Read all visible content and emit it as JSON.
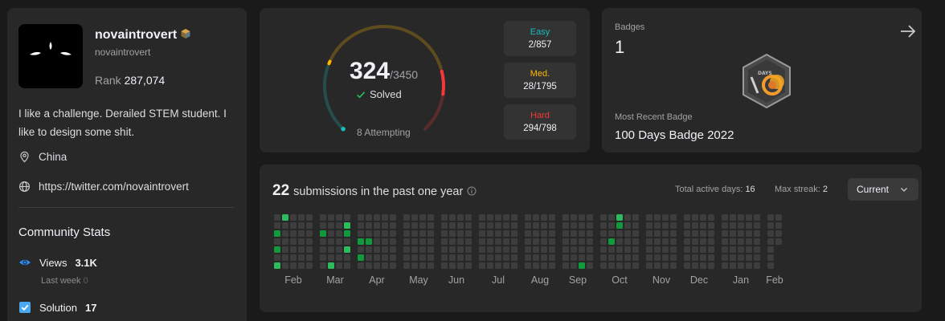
{
  "profile": {
    "username": "novaintrovert",
    "handle": "novaintrovert",
    "rank_label": "Rank",
    "rank_value": "287,074",
    "bio": "I like a challenge. Derailed STEM student. I like to design some shit.",
    "location": "China",
    "website": "https://twitter.com/novaintrovert",
    "community_title": "Community Stats",
    "views_label": "Views",
    "views_value": "3.1K",
    "views_sub": "Last week",
    "views_sub_value": "0",
    "solution_label": "Solution",
    "solution_value": "17"
  },
  "solved": {
    "count": "324",
    "total": "/3450",
    "label": "Solved",
    "attempting": "8 Attempting",
    "progress": {
      "solved": 324,
      "total": 3450,
      "easy": 2,
      "medium": 28,
      "hard": 294
    },
    "easy_label": "Easy",
    "easy_value": "2/857",
    "med_label": "Med.",
    "med_value": "28/1795",
    "hard_label": "Hard",
    "hard_value": "294/798",
    "colors": {
      "easy": "#1cbaba",
      "medium": "#ffb700",
      "hard": "#f63737"
    }
  },
  "badges": {
    "title": "Badges",
    "count": "1",
    "recent_label": "Most Recent Badge",
    "recent_name": "100 Days Badge 2022",
    "badge_text": "DAYS"
  },
  "submissions": {
    "count": "22",
    "title": "submissions in the past one year",
    "active_label": "Total active days:",
    "active_value": "16",
    "streak_label": "Max streak:",
    "streak_value": "2",
    "select_value": "Current",
    "months": [
      "Feb",
      "Mar",
      "Apr",
      "May",
      "Jun",
      "Jul",
      "Aug",
      "Sep",
      "Oct",
      "Nov",
      "Dec",
      "Jan",
      "Feb"
    ],
    "active_cells": [
      {
        "week": 0,
        "day": 2,
        "level": 1
      },
      {
        "week": 0,
        "day": 4,
        "level": 1
      },
      {
        "week": 0,
        "day": 6,
        "level": 2
      },
      {
        "week": 1,
        "day": 0,
        "level": 2
      },
      {
        "week": 5,
        "day": 2,
        "level": 1
      },
      {
        "week": 6,
        "day": 6,
        "level": 2
      },
      {
        "week": 8,
        "day": 1,
        "level": 2
      },
      {
        "week": 8,
        "day": 2,
        "level": 1
      },
      {
        "week": 8,
        "day": 4,
        "level": 2
      },
      {
        "week": 9,
        "day": 3,
        "level": 1
      },
      {
        "week": 9,
        "day": 5,
        "level": 1
      },
      {
        "week": 10,
        "day": 3,
        "level": 1
      },
      {
        "week": 37,
        "day": 0,
        "level": 2
      },
      {
        "week": 37,
        "day": 1,
        "level": 1
      },
      {
        "week": 36,
        "day": 3,
        "level": 1
      },
      {
        "week": 33,
        "day": 6,
        "level": 1
      }
    ]
  }
}
